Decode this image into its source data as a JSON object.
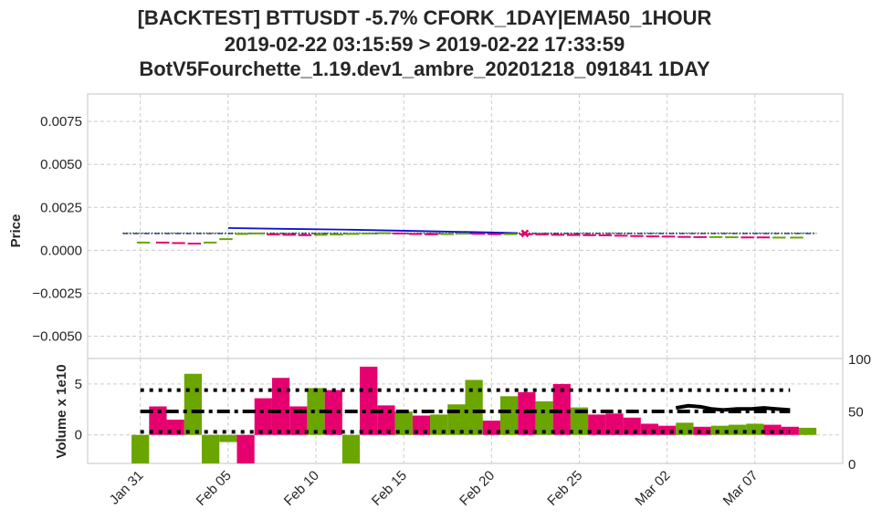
{
  "chart_data": {
    "type": "backtest-candlestick-volume",
    "title_lines": [
      "[BACKTEST] BTTUSDT -5.7% CFORK_1DAY|EMA50_1HOUR",
      "2019-02-22 03:15:59 > 2019-02-22 17:33:59",
      "BotV5Fourchette_1.19.dev1_ambre_20201218_091841 1DAY"
    ],
    "x_ticks": [
      "Jan 31",
      "Feb 05",
      "Feb 10",
      "Feb 15",
      "Feb 20",
      "Feb 25",
      "Mar 02",
      "Mar 07"
    ],
    "x_tick_days": [
      0,
      5,
      10,
      15,
      20,
      25,
      30,
      35
    ],
    "x_range_days": [
      -3,
      40
    ],
    "price_panel": {
      "ylabel": "Price",
      "ylim": [
        -0.0063,
        0.0091
      ],
      "y_ticks": [
        "0.0075",
        "0.0050",
        "0.0025",
        "0.0000",
        "−0.0025",
        "−0.0050"
      ],
      "y_tick_values": [
        0.0075,
        0.005,
        0.0025,
        0.0,
        -0.0025,
        -0.005
      ],
      "grid": true,
      "price_steps": [
        {
          "day": -0.2,
          "value": 0.00045,
          "dir": "up"
        },
        {
          "day": 0.9,
          "value": 0.00045,
          "dir": "down"
        },
        {
          "day": 1.8,
          "value": 0.00042,
          "dir": "down"
        },
        {
          "day": 2.7,
          "value": 0.00039,
          "dir": "down"
        },
        {
          "day": 3.6,
          "value": 0.00045,
          "dir": "up"
        },
        {
          "day": 4.5,
          "value": 0.00065,
          "dir": "up"
        },
        {
          "day": 5.4,
          "value": 0.00095,
          "dir": "up"
        },
        {
          "day": 6.3,
          "value": 0.00098,
          "dir": "up"
        },
        {
          "day": 7.2,
          "value": 0.00092,
          "dir": "down"
        },
        {
          "day": 8.1,
          "value": 0.0009,
          "dir": "down"
        },
        {
          "day": 9.0,
          "value": 0.00088,
          "dir": "down"
        },
        {
          "day": 9.9,
          "value": 0.0009,
          "dir": "up"
        },
        {
          "day": 10.8,
          "value": 0.00092,
          "dir": "up"
        },
        {
          "day": 11.7,
          "value": 0.00095,
          "dir": "up"
        },
        {
          "day": 12.6,
          "value": 0.00098,
          "dir": "up"
        },
        {
          "day": 13.5,
          "value": 0.001,
          "dir": "up"
        },
        {
          "day": 14.4,
          "value": 0.00098,
          "dir": "down"
        },
        {
          "day": 15.3,
          "value": 0.00095,
          "dir": "down"
        },
        {
          "day": 16.2,
          "value": 0.00093,
          "dir": "down"
        },
        {
          "day": 17.1,
          "value": 0.00094,
          "dir": "up"
        },
        {
          "day": 18.0,
          "value": 0.00097,
          "dir": "up"
        },
        {
          "day": 18.9,
          "value": 0.00096,
          "dir": "down"
        },
        {
          "day": 19.8,
          "value": 0.00094,
          "dir": "down"
        },
        {
          "day": 20.7,
          "value": 0.00094,
          "dir": "up"
        },
        {
          "day": 21.6,
          "value": 0.00093,
          "dir": "down"
        },
        {
          "day": 22.5,
          "value": 0.00092,
          "dir": "down"
        },
        {
          "day": 23.4,
          "value": 0.0009,
          "dir": "down"
        },
        {
          "day": 24.3,
          "value": 0.00089,
          "dir": "down"
        },
        {
          "day": 25.2,
          "value": 0.00088,
          "dir": "down"
        },
        {
          "day": 26.1,
          "value": 0.00087,
          "dir": "down"
        },
        {
          "day": 27.0,
          "value": 0.00085,
          "dir": "down"
        },
        {
          "day": 27.9,
          "value": 0.00083,
          "dir": "down"
        },
        {
          "day": 28.8,
          "value": 0.00081,
          "dir": "down"
        },
        {
          "day": 29.7,
          "value": 0.0008,
          "dir": "down"
        },
        {
          "day": 30.6,
          "value": 0.00078,
          "dir": "down"
        },
        {
          "day": 31.5,
          "value": 0.00077,
          "dir": "down"
        },
        {
          "day": 32.4,
          "value": 0.00077,
          "dir": "up"
        },
        {
          "day": 33.3,
          "value": 0.00076,
          "dir": "up"
        },
        {
          "day": 34.2,
          "value": 0.00075,
          "dir": "down"
        },
        {
          "day": 35.1,
          "value": 0.00075,
          "dir": "down"
        },
        {
          "day": 36.0,
          "value": 0.00074,
          "dir": "up"
        },
        {
          "day": 37.0,
          "value": 0.00074,
          "dir": "up"
        }
      ],
      "ema_blue": [
        {
          "day": 5.0,
          "value": 0.0013
        },
        {
          "day": 8.0,
          "value": 0.00125
        },
        {
          "day": 12.0,
          "value": 0.0012
        },
        {
          "day": 16.0,
          "value": 0.00112
        },
        {
          "day": 20.0,
          "value": 0.00104
        },
        {
          "day": 21.5,
          "value": 0.001
        }
      ],
      "green_dotted_level": 0.001,
      "navy_dashdot_level": 0.001,
      "level_range_days": [
        -1.0,
        38.5
      ],
      "marker": {
        "day": 21.9,
        "value": 0.00098,
        "symbol": "x"
      },
      "colors": {
        "up": "#6aa500",
        "down": "#e6006f",
        "ema": "#1010d0",
        "dotted": "#3a8a3a",
        "dashdot": "#1a1a6e",
        "marker": "#e6006f"
      }
    },
    "volume_panel": {
      "ylabel": "Volume x 1e10",
      "ylim": [
        -2.8,
        7.5
      ],
      "y_ticks": [
        "5",
        "0"
      ],
      "y_tick_values": [
        5,
        0
      ],
      "right_ticks": [
        "100",
        "50",
        "0"
      ],
      "right_tick_values": [
        100,
        50,
        0
      ],
      "right_ylim": [
        0,
        100
      ],
      "bars": [
        {
          "day": 0,
          "value": -2.8,
          "dir": "up"
        },
        {
          "day": 1,
          "value": 2.8,
          "dir": "down"
        },
        {
          "day": 2,
          "value": 1.5,
          "dir": "down"
        },
        {
          "day": 3,
          "value": 6.0,
          "dir": "up"
        },
        {
          "day": 4,
          "value": -2.8,
          "dir": "up"
        },
        {
          "day": 5,
          "value": -0.7,
          "dir": "up"
        },
        {
          "day": 6,
          "value": -2.8,
          "dir": "down"
        },
        {
          "day": 7,
          "value": 3.6,
          "dir": "down"
        },
        {
          "day": 8,
          "value": 5.6,
          "dir": "down"
        },
        {
          "day": 9,
          "value": 2.8,
          "dir": "down"
        },
        {
          "day": 10,
          "value": 4.6,
          "dir": "up"
        },
        {
          "day": 11,
          "value": 4.4,
          "dir": "down"
        },
        {
          "day": 12,
          "value": -2.8,
          "dir": "up"
        },
        {
          "day": 13,
          "value": 6.7,
          "dir": "down"
        },
        {
          "day": 14,
          "value": 2.9,
          "dir": "down"
        },
        {
          "day": 15,
          "value": 2.3,
          "dir": "up"
        },
        {
          "day": 16,
          "value": 1.9,
          "dir": "down"
        },
        {
          "day": 17,
          "value": 2.0,
          "dir": "up"
        },
        {
          "day": 18,
          "value": 3.0,
          "dir": "up"
        },
        {
          "day": 19,
          "value": 5.4,
          "dir": "up"
        },
        {
          "day": 20,
          "value": 1.4,
          "dir": "down"
        },
        {
          "day": 21,
          "value": 3.8,
          "dir": "up"
        },
        {
          "day": 22,
          "value": 4.2,
          "dir": "down"
        },
        {
          "day": 23,
          "value": 3.3,
          "dir": "up"
        },
        {
          "day": 24,
          "value": 5.0,
          "dir": "down"
        },
        {
          "day": 25,
          "value": 2.7,
          "dir": "up"
        },
        {
          "day": 26,
          "value": 2.0,
          "dir": "down"
        },
        {
          "day": 27,
          "value": 2.1,
          "dir": "down"
        },
        {
          "day": 28,
          "value": 1.7,
          "dir": "down"
        },
        {
          "day": 29,
          "value": 1.1,
          "dir": "down"
        },
        {
          "day": 30,
          "value": 0.9,
          "dir": "down"
        },
        {
          "day": 31,
          "value": 1.2,
          "dir": "up"
        },
        {
          "day": 32,
          "value": 0.8,
          "dir": "down"
        },
        {
          "day": 33,
          "value": 0.9,
          "dir": "up"
        },
        {
          "day": 34,
          "value": 1.0,
          "dir": "up"
        },
        {
          "day": 35,
          "value": 1.1,
          "dir": "up"
        },
        {
          "day": 36,
          "value": 1.0,
          "dir": "down"
        },
        {
          "day": 37,
          "value": 0.8,
          "dir": "down"
        },
        {
          "day": 38,
          "value": 0.7,
          "dir": "up"
        }
      ],
      "dotted_upper": 4.4,
      "dotted_lower": 0.3,
      "dashdot_mean": 2.3,
      "dotted_range_days": [
        0,
        37
      ],
      "right_line": [
        {
          "day": 30.5,
          "value": 53
        },
        {
          "day": 31.2,
          "value": 55
        },
        {
          "day": 31.9,
          "value": 54
        },
        {
          "day": 32.5,
          "value": 52
        },
        {
          "day": 33.2,
          "value": 51
        },
        {
          "day": 34.0,
          "value": 52
        },
        {
          "day": 34.8,
          "value": 52
        },
        {
          "day": 35.5,
          "value": 53
        },
        {
          "day": 36.2,
          "value": 52
        },
        {
          "day": 37.0,
          "value": 51
        }
      ],
      "colors": {
        "up": "#6aa500",
        "down": "#e6006f",
        "lines": "#000000"
      }
    }
  }
}
